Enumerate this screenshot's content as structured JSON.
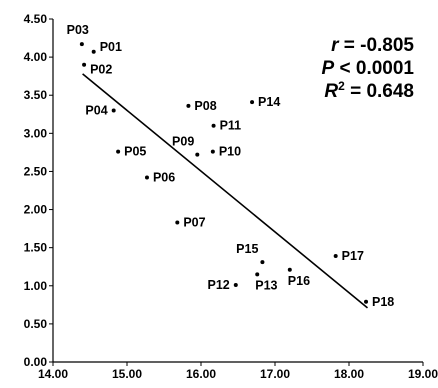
{
  "chart_data": {
    "type": "scatter",
    "xlim": [
      14.0,
      19.0
    ],
    "ylim": [
      0.0,
      4.5
    ],
    "x_ticks": [
      "14.00",
      "15.00",
      "16.00",
      "17.00",
      "18.00",
      "19.00"
    ],
    "y_ticks": [
      "0.00",
      "0.50",
      "1.00",
      "1.50",
      "2.00",
      "2.50",
      "3.00",
      "3.50",
      "4.00",
      "4.50"
    ],
    "grid": false,
    "points": [
      {
        "label": "P03",
        "x": 14.39,
        "y": 4.17
      },
      {
        "label": "P01",
        "x": 14.55,
        "y": 4.07
      },
      {
        "label": "P02",
        "x": 14.42,
        "y": 3.9
      },
      {
        "label": "P04",
        "x": 14.82,
        "y": 3.3
      },
      {
        "label": "P05",
        "x": 14.88,
        "y": 2.76
      },
      {
        "label": "P06",
        "x": 15.27,
        "y": 2.42
      },
      {
        "label": "P07",
        "x": 15.68,
        "y": 1.83
      },
      {
        "label": "P08",
        "x": 15.83,
        "y": 3.36
      },
      {
        "label": "P09",
        "x": 15.95,
        "y": 2.72
      },
      {
        "label": "P10",
        "x": 16.16,
        "y": 2.76
      },
      {
        "label": "P11",
        "x": 16.17,
        "y": 3.1
      },
      {
        "label": "P12",
        "x": 16.47,
        "y": 1.01
      },
      {
        "label": "P13",
        "x": 16.76,
        "y": 1.15
      },
      {
        "label": "P14",
        "x": 16.69,
        "y": 3.41
      },
      {
        "label": "P15",
        "x": 16.83,
        "y": 1.31
      },
      {
        "label": "P16",
        "x": 17.2,
        "y": 1.21
      },
      {
        "label": "P17",
        "x": 17.82,
        "y": 1.39
      },
      {
        "label": "P18",
        "x": 18.23,
        "y": 0.79
      }
    ],
    "trendline": {
      "x": [
        14.4,
        18.25
      ],
      "y": [
        3.78,
        0.71
      ]
    },
    "annotations": {
      "r_label": "r",
      "r_value": " = -0.805",
      "p_label": "P",
      "p_value": " < 0.0001",
      "r2_label": "R",
      "r2_sup": "2",
      "r2_value": " = 0.648"
    }
  }
}
